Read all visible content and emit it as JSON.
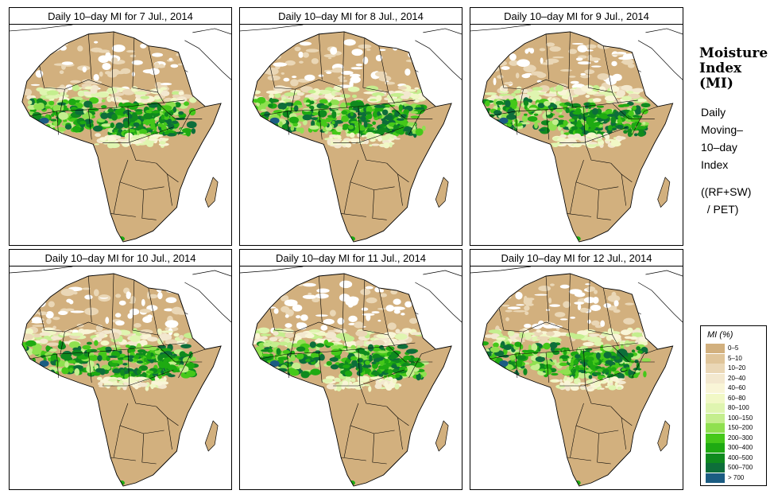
{
  "panels": [
    {
      "title": "Daily 10–day MI for  7 Jul., 2014",
      "day": 7
    },
    {
      "title": "Daily 10–day MI for  8 Jul., 2014",
      "day": 8
    },
    {
      "title": "Daily 10–day MI for  9 Jul., 2014",
      "day": 9
    },
    {
      "title": "Daily 10–day MI for  10 Jul., 2014",
      "day": 10
    },
    {
      "title": "Daily 10–day MI for  11 Jul., 2014",
      "day": 11
    },
    {
      "title": "Daily 10–day MI for  12 Jul., 2014",
      "day": 12
    }
  ],
  "side": {
    "title_lines": [
      "Moisture",
      "Index",
      "(MI)"
    ],
    "desc_lines": [
      "Daily",
      "Moving–",
      "10–day",
      "Index",
      "((RF+SW)",
      "  / PET)"
    ]
  },
  "legend": {
    "title": "MI (%)",
    "classes": [
      {
        "label": "0–5",
        "color": "#d2b07e"
      },
      {
        "label": "5–10",
        "color": "#e0c59a"
      },
      {
        "label": "10–20",
        "color": "#ead7b6"
      },
      {
        "label": "20–40",
        "color": "#f3e8cf"
      },
      {
        "label": "40–60",
        "color": "#f9f5d7"
      },
      {
        "label": "60–80",
        "color": "#f1f8c6"
      },
      {
        "label": "80–100",
        "color": "#dff5b0"
      },
      {
        "label": "100–150",
        "color": "#c4ee8e"
      },
      {
        "label": "150–200",
        "color": "#8fe050"
      },
      {
        "label": "200–300",
        "color": "#45c81a"
      },
      {
        "label": "300–400",
        "color": "#1eaa12"
      },
      {
        "label": "400–500",
        "color": "#0f8a1e"
      },
      {
        "label": "500–700",
        "color": "#0d6e3a"
      },
      {
        "label": "> 700",
        "color": "#1b5c82"
      }
    ]
  }
}
